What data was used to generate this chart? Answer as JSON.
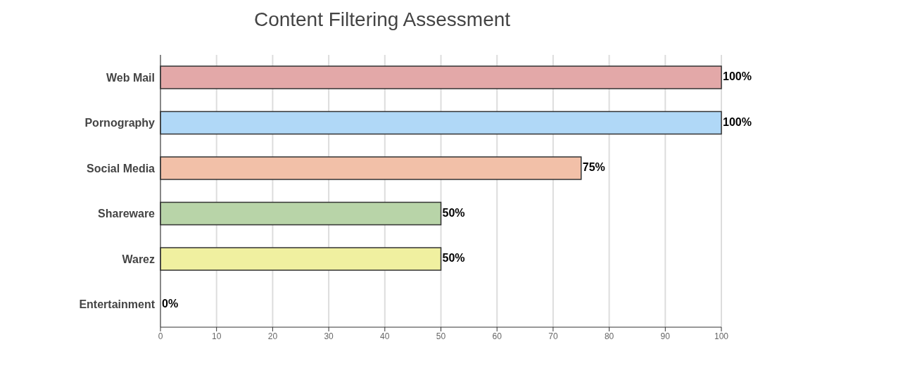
{
  "chart_data": {
    "type": "bar",
    "orientation": "horizontal",
    "title": "Content Filtering Assessment",
    "categories": [
      "Web Mail",
      "Pornography",
      "Social Media",
      "Shareware",
      "Warez",
      "Entertainment"
    ],
    "values": [
      100,
      100,
      75,
      50,
      50,
      0
    ],
    "colors": [
      "#e3a8a8",
      "#b0d8f7",
      "#f2c0a8",
      "#b8d4a8",
      "#f0f0a0",
      "#dddddd"
    ],
    "value_labels": [
      "100%",
      "100%",
      "75%",
      "50%",
      "50%",
      "0%"
    ],
    "xlim": [
      0,
      100
    ],
    "xticks": [
      0,
      10,
      20,
      30,
      40,
      50,
      60,
      70,
      80,
      90,
      100
    ],
    "grid": "x"
  }
}
